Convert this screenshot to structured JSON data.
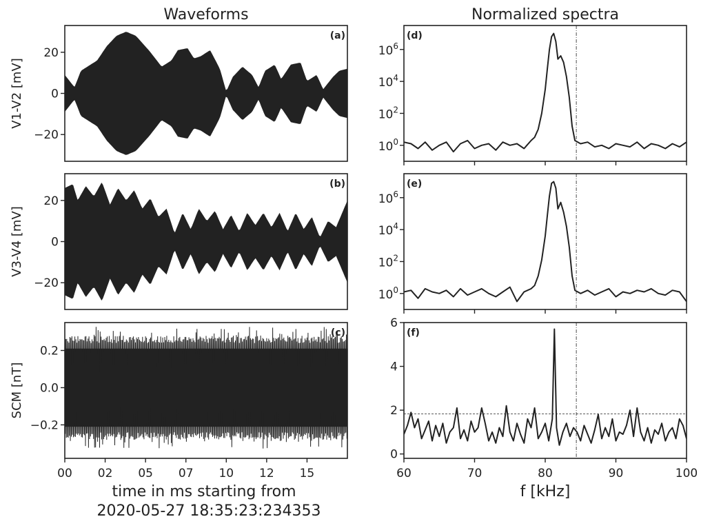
{
  "col_titles": {
    "left": "Waveforms",
    "right": "Normalized spectra"
  },
  "left_xlabel_line1": "time in ms starting from",
  "left_xlabel_line2": "2020-05-27  18:35:23:234353",
  "right_xlabel": "f [kHz]",
  "chart_data": [
    {
      "panel": "(a)",
      "type": "line",
      "ylabel": "V1-V2 [mV]",
      "xlim": [
        0,
        17.5
      ],
      "ylim": [
        -33,
        33
      ],
      "yticks": [
        20,
        0,
        -20
      ],
      "ytick_labels": [
        "20",
        "0",
        "−20"
      ],
      "xticks": [],
      "xtick_labels": [],
      "envelope_x": [
        0,
        0.6,
        1,
        1.4,
        2,
        2.6,
        3.2,
        3.8,
        4.4,
        5.2,
        6,
        6.6,
        7,
        7.6,
        8,
        8.4,
        9,
        9.6,
        10,
        10.4,
        11,
        11.6,
        12,
        12.4,
        13,
        13.4,
        14,
        14.6,
        15,
        15.6,
        16,
        16.6,
        17,
        17.5
      ],
      "envelope_amp": [
        9,
        3,
        11,
        13,
        16,
        23,
        28,
        30,
        28,
        21,
        13,
        16,
        21,
        22,
        17,
        18,
        21,
        12,
        1,
        8,
        13,
        9,
        3,
        11,
        14,
        7,
        14,
        15,
        6,
        9,
        2,
        8,
        11,
        12
      ]
    },
    {
      "panel": "(b)",
      "type": "line",
      "ylabel": "V3-V4 [mV]",
      "xlim": [
        0,
        17.5
      ],
      "ylim": [
        -33,
        33
      ],
      "yticks": [
        20,
        0,
        -20
      ],
      "ytick_labels": [
        "20",
        "0",
        "−20"
      ],
      "xticks": [],
      "xtick_labels": [],
      "envelope_x": [
        0,
        0.5,
        0.8,
        1.3,
        1.8,
        2.3,
        2.8,
        3.3,
        3.8,
        4.3,
        4.8,
        5.3,
        5.8,
        6.3,
        6.8,
        7.3,
        7.8,
        8.3,
        8.8,
        9.3,
        9.8,
        10.3,
        10.8,
        11.3,
        11.8,
        12.3,
        12.8,
        13.3,
        13.8,
        14.3,
        14.8,
        15.3,
        15.8,
        16.3,
        16.8,
        17.5
      ],
      "envelope_amp": [
        26,
        28,
        20,
        27,
        22,
        29,
        18,
        26,
        20,
        25,
        16,
        21,
        12,
        16,
        4,
        14,
        6,
        16,
        10,
        15,
        6,
        13,
        5,
        14,
        8,
        14,
        7,
        14,
        5,
        14,
        6,
        12,
        2,
        10,
        7,
        20
      ]
    },
    {
      "panel": "(c)",
      "type": "line",
      "ylabel": "SCM [nT]",
      "xlim": [
        0,
        17.5
      ],
      "ylim": [
        -0.38,
        0.35
      ],
      "yticks": [
        0.2,
        0.0,
        -0.2
      ],
      "ytick_labels": [
        "0.2",
        "0.0",
        "−0.2"
      ],
      "xticks": [
        0,
        2.5,
        5,
        7.5,
        10,
        12.5,
        15
      ],
      "xtick_labels": [
        "00",
        "02",
        "05",
        "07",
        "10",
        "12",
        "15"
      ],
      "noise_level": 0.24
    },
    {
      "panel": "(d)",
      "type": "line",
      "yscale": "log",
      "xlim": [
        60,
        100
      ],
      "ylim_exp": [
        -1,
        7.5
      ],
      "yticks_exp": [
        0,
        2,
        4,
        6
      ],
      "ytick_labels": [
        {
          "base": "10",
          "exp": "0"
        },
        {
          "base": "10",
          "exp": "2"
        },
        {
          "base": "10",
          "exp": "4"
        },
        {
          "base": "10",
          "exp": "6"
        }
      ],
      "xticks": [
        60,
        70,
        80,
        90,
        100
      ],
      "xtick_labels": [],
      "vline_x": 84.4,
      "curve_x": [
        60,
        61,
        62,
        63,
        64,
        65,
        66,
        67,
        68,
        69,
        70,
        71,
        72,
        73,
        74,
        75,
        76,
        77,
        78,
        78.5,
        79,
        79.5,
        80,
        80.3,
        80.6,
        80.9,
        81.2,
        81.5,
        81.8,
        82.2,
        82.6,
        83,
        83.4,
        83.8,
        84.2,
        85,
        86,
        87,
        88,
        89,
        90,
        91,
        92,
        93,
        94,
        95,
        96,
        97,
        98,
        99,
        100
      ],
      "curve_y_exp": [
        0.2,
        0.1,
        -0.2,
        0.2,
        -0.3,
        0.0,
        0.2,
        -0.4,
        0.1,
        0.3,
        -0.2,
        0.0,
        0.1,
        -0.3,
        0.2,
        0.0,
        0.1,
        -0.2,
        0.3,
        0.5,
        1.0,
        2.0,
        3.5,
        4.8,
        6.0,
        6.8,
        7.0,
        6.5,
        5.4,
        5.6,
        5.2,
        4.3,
        3.0,
        1.2,
        0.3,
        0.1,
        0.2,
        -0.1,
        0.0,
        -0.2,
        0.1,
        0.0,
        -0.1,
        0.2,
        -0.2,
        0.1,
        0.0,
        -0.2,
        0.1,
        -0.1,
        0.2
      ]
    },
    {
      "panel": "(e)",
      "type": "line",
      "yscale": "log",
      "xlim": [
        60,
        100
      ],
      "ylim_exp": [
        -1,
        7.5
      ],
      "yticks_exp": [
        0,
        2,
        4,
        6
      ],
      "ytick_labels": [
        {
          "base": "10",
          "exp": "0"
        },
        {
          "base": "10",
          "exp": "2"
        },
        {
          "base": "10",
          "exp": "4"
        },
        {
          "base": "10",
          "exp": "6"
        }
      ],
      "xticks": [
        60,
        70,
        80,
        90,
        100
      ],
      "xtick_labels": [],
      "vline_x": 84.4,
      "curve_x": [
        60,
        61,
        62,
        63,
        64,
        65,
        66,
        67,
        68,
        69,
        70,
        71,
        72,
        73,
        74,
        75,
        76,
        77,
        78,
        78.5,
        79,
        79.5,
        80,
        80.3,
        80.6,
        80.9,
        81.2,
        81.5,
        81.8,
        82.2,
        82.6,
        83,
        83.4,
        83.8,
        84.2,
        85,
        86,
        87,
        88,
        89,
        90,
        91,
        92,
        93,
        94,
        95,
        96,
        97,
        98,
        99,
        100
      ],
      "curve_y_exp": [
        0.1,
        0.2,
        -0.3,
        0.3,
        0.1,
        0.0,
        0.2,
        -0.2,
        0.3,
        -0.1,
        0.1,
        0.3,
        0.0,
        -0.2,
        0.1,
        0.4,
        -0.5,
        0.1,
        0.3,
        0.5,
        1.1,
        2.1,
        3.6,
        4.9,
        6.1,
        6.9,
        7.0,
        6.6,
        5.3,
        5.7,
        5.1,
        4.2,
        2.9,
        1.1,
        0.2,
        0.0,
        0.2,
        -0.1,
        0.1,
        0.3,
        -0.2,
        0.1,
        0.0,
        0.2,
        0.1,
        0.3,
        0.0,
        -0.1,
        0.2,
        0.1,
        -0.5
      ]
    },
    {
      "panel": "(f)",
      "type": "line",
      "xlim": [
        60,
        100
      ],
      "ylim": [
        -0.2,
        6
      ],
      "yticks": [
        0,
        2,
        4,
        6
      ],
      "ytick_labels": [
        "0",
        "2",
        "4",
        "6"
      ],
      "xticks": [
        60,
        70,
        80,
        90,
        100
      ],
      "xtick_labels": [
        "60",
        "70",
        "80",
        "90",
        "100"
      ],
      "vline_x": 84.4,
      "hline_y": 1.83,
      "curve_x": [
        60,
        60.5,
        61,
        61.5,
        62,
        62.5,
        63,
        63.5,
        64,
        64.5,
        65,
        65.5,
        66,
        66.5,
        67,
        67.5,
        68,
        68.5,
        69,
        69.5,
        70,
        70.5,
        71,
        71.5,
        72,
        72.5,
        73,
        73.5,
        74,
        74.5,
        75,
        75.5,
        76,
        76.5,
        77,
        77.5,
        78,
        78.5,
        79,
        79.5,
        80,
        80.5,
        81,
        81.3,
        81.6,
        82,
        82.5,
        83,
        83.5,
        84,
        84.5,
        85,
        85.5,
        86,
        86.5,
        87,
        87.5,
        88,
        88.5,
        89,
        89.5,
        90,
        90.5,
        91,
        91.5,
        92,
        92.5,
        93,
        93.5,
        94,
        94.5,
        95,
        95.5,
        96,
        96.5,
        97,
        97.5,
        98,
        98.5,
        99,
        99.5,
        100
      ],
      "curve_y": [
        0.9,
        1.3,
        1.9,
        1.2,
        1.6,
        0.7,
        1.1,
        1.5,
        0.6,
        1.3,
        0.8,
        1.4,
        0.5,
        1.0,
        1.2,
        2.1,
        0.7,
        1.1,
        0.6,
        1.5,
        1.0,
        1.2,
        2.1,
        1.4,
        0.6,
        1.0,
        0.5,
        1.2,
        0.8,
        2.2,
        1.0,
        0.6,
        1.4,
        0.9,
        0.5,
        1.6,
        1.2,
        2.1,
        0.7,
        1.0,
        1.4,
        0.6,
        1.6,
        5.7,
        1.2,
        0.4,
        1.0,
        1.4,
        0.8,
        1.2,
        1.0,
        0.6,
        1.3,
        0.9,
        0.5,
        1.1,
        1.8,
        0.7,
        1.2,
        0.8,
        1.6,
        0.6,
        1.0,
        0.9,
        1.3,
        2.0,
        0.8,
        2.1,
        1.0,
        0.6,
        1.2,
        0.5,
        1.1,
        0.9,
        1.4,
        0.6,
        1.0,
        1.2,
        0.7,
        1.6,
        1.3,
        0.7
      ]
    }
  ]
}
